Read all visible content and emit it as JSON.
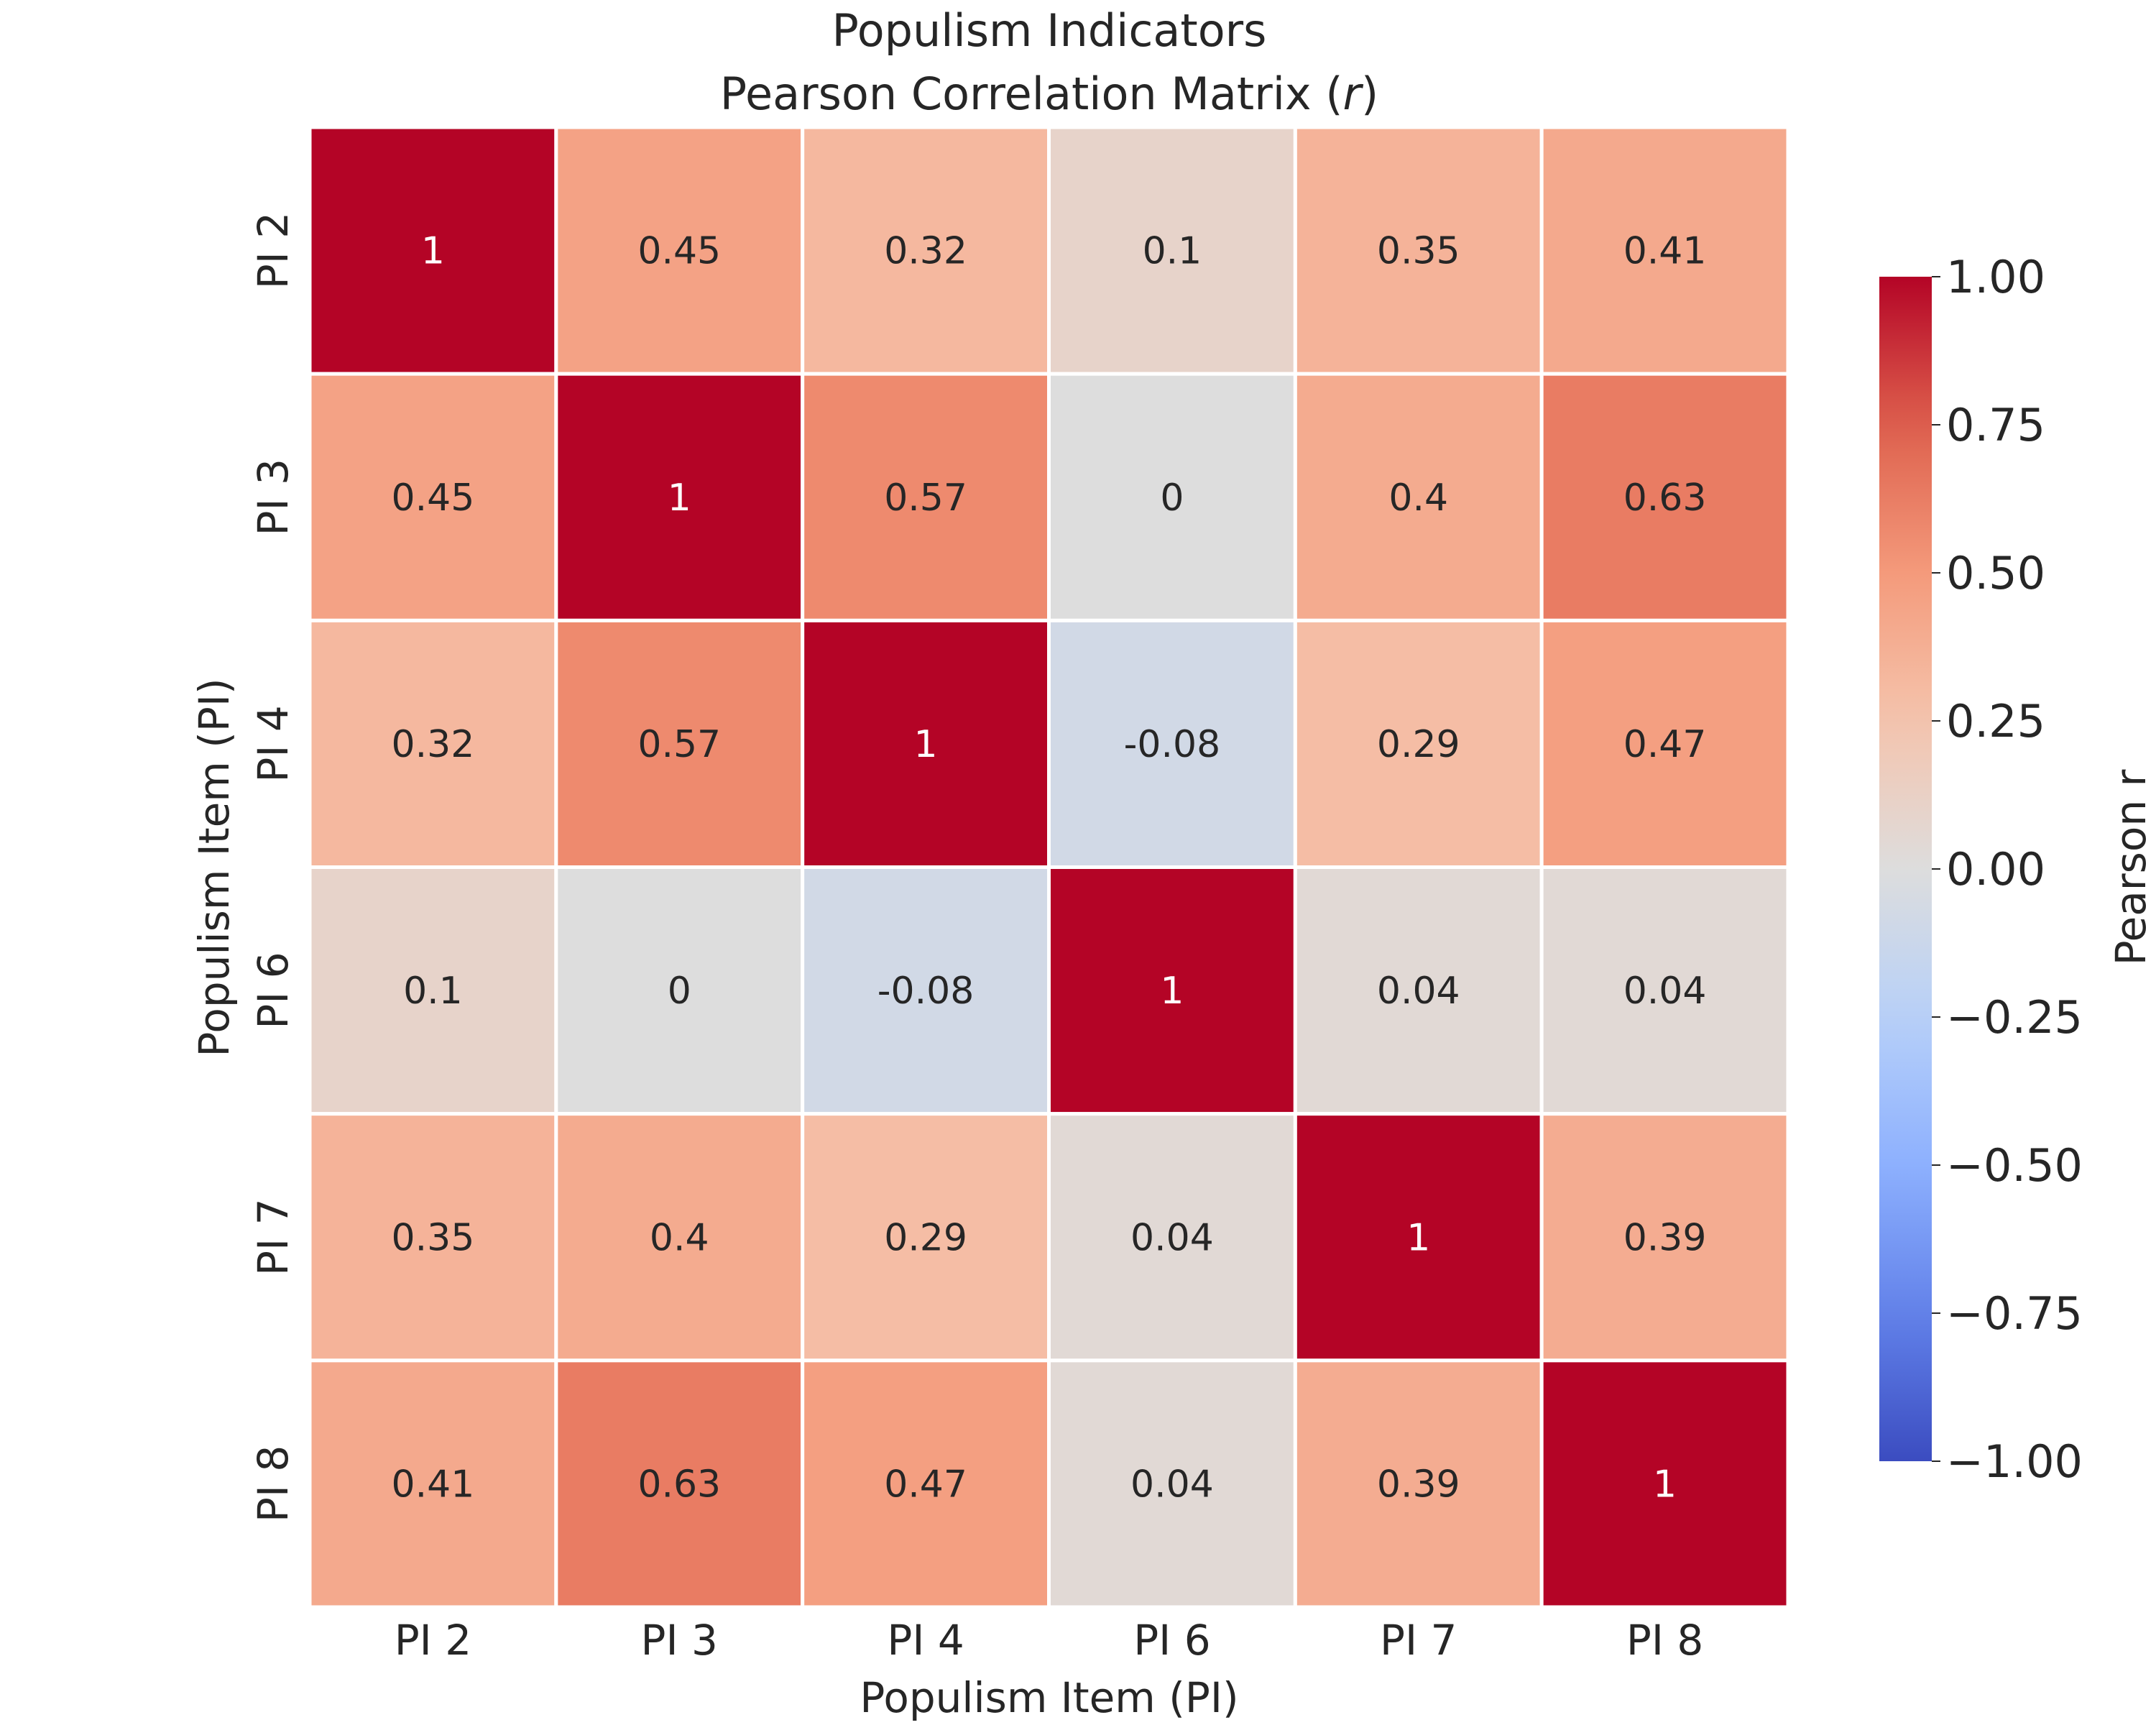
{
  "chart_data": {
    "type": "heatmap",
    "title": [
      "Populism Indicators",
      "Pearson Correlation Matrix (r)"
    ],
    "xlabel": "Populism Item (PI)",
    "ylabel": "Populism Item (PI)",
    "x_categories": [
      "PI 2",
      "PI 3",
      "PI 4",
      "PI 6",
      "PI 7",
      "PI 8"
    ],
    "y_categories": [
      "PI 2",
      "PI 3",
      "PI 4",
      "PI 6",
      "PI 7",
      "PI 8"
    ],
    "values": [
      [
        1,
        0.45,
        0.32,
        0.1,
        0.35,
        0.41
      ],
      [
        0.45,
        1,
        0.57,
        0,
        0.4,
        0.63
      ],
      [
        0.32,
        0.57,
        1,
        -0.08,
        0.29,
        0.47
      ],
      [
        0.1,
        0,
        -0.08,
        1,
        0.04,
        0.04
      ],
      [
        0.35,
        0.4,
        0.29,
        0.04,
        1,
        0.39
      ],
      [
        0.41,
        0.63,
        0.47,
        0.04,
        0.39,
        1
      ]
    ],
    "annotations": [
      [
        "1",
        "0.45",
        "0.32",
        "0.1",
        "0.35",
        "0.41"
      ],
      [
        "0.45",
        "1",
        "0.57",
        "0",
        "0.4",
        "0.63"
      ],
      [
        "0.32",
        "0.57",
        "1",
        "-0.08",
        "0.29",
        "0.47"
      ],
      [
        "0.1",
        "0",
        "-0.08",
        "1",
        "0.04",
        "0.04"
      ],
      [
        "0.35",
        "0.4",
        "0.29",
        "0.04",
        "1",
        "0.39"
      ],
      [
        "0.41",
        "0.63",
        "0.47",
        "0.04",
        "0.39",
        "1"
      ]
    ],
    "colormap": "coolwarm",
    "vmin": -1,
    "vmax": 1,
    "colorbar": {
      "label": "Pearson r",
      "ticks": [
        1.0,
        0.75,
        0.5,
        0.25,
        0.0,
        -0.25,
        -0.5,
        -0.75,
        -1.0
      ],
      "tick_labels": [
        "1.00",
        "0.75",
        "0.50",
        "0.25",
        "0.00",
        "−0.25",
        "−0.50",
        "−0.75",
        "−1.00"
      ]
    },
    "cell_border_color": "#ffffff",
    "text_color_dark": "#262626",
    "text_color_light": "#ffffff"
  }
}
